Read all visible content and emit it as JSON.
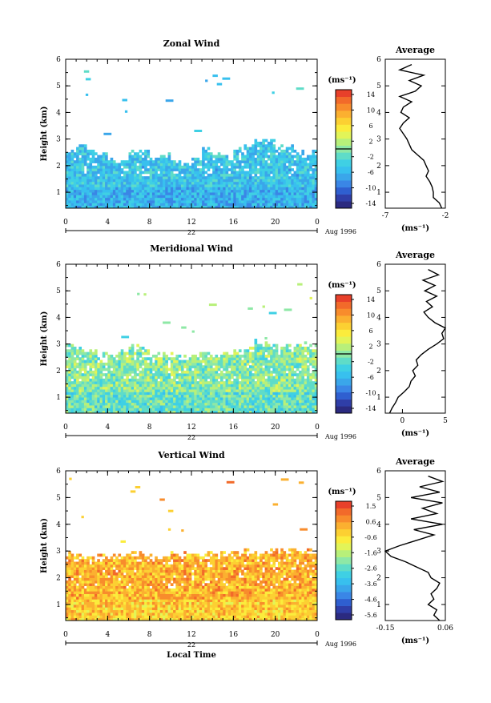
{
  "chart_data": [
    {
      "type": "heatmap",
      "title": "Zonal Wind",
      "ylabel": "Height (km)",
      "xlabel": "",
      "x_ticks": [
        "0",
        "4",
        "8",
        "12",
        "16",
        "20",
        "0"
      ],
      "x_range": [
        0,
        24
      ],
      "y_ticks": [
        "1",
        "2",
        "3",
        "4",
        "5",
        "6"
      ],
      "y_range": [
        0.4,
        6
      ],
      "date_day": "22",
      "date_label": "Aug 1996",
      "colorbar": {
        "unit": "(ms⁻¹)",
        "labels": [
          "14",
          "10",
          "6",
          "2",
          "-2",
          "-6",
          "-10",
          "-14"
        ],
        "range": [
          -16,
          16
        ],
        "zero_line": true
      },
      "data_top_km": [
        2.6,
        2.8,
        2.6,
        2.4,
        2.2,
        2.2,
        2.5,
        2.6,
        2.3,
        2.4,
        2.2,
        2.0,
        2.2,
        2.6,
        2.5,
        2.3,
        2.6,
        2.8,
        3.0,
        2.9,
        2.7,
        2.7,
        2.5,
        2.5
      ],
      "typical_value": -5,
      "profile": {
        "title": "Average",
        "xlabel": "(ms⁻¹)",
        "x_ticks": [
          "-7",
          "-2"
        ],
        "x_range": [
          -7,
          -2
        ],
        "heights": [
          0.4,
          0.6,
          0.8,
          1.0,
          1.2,
          1.4,
          1.6,
          1.8,
          2.0,
          2.2,
          2.4,
          2.6,
          2.8,
          3.0,
          3.2,
          3.4,
          3.6,
          3.8,
          4.0,
          4.2,
          4.4,
          4.6,
          4.8,
          5.0,
          5.2,
          5.4,
          5.6,
          5.8
        ],
        "values": [
          -2.3,
          -2.5,
          -3.0,
          -3.0,
          -3.1,
          -3.3,
          -3.6,
          -3.4,
          -3.6,
          -3.8,
          -4.3,
          -4.8,
          -5.0,
          -5.2,
          -5.5,
          -5.8,
          -5.5,
          -5.0,
          -5.7,
          -5.5,
          -4.8,
          -5.8,
          -4.5,
          -4.0,
          -5.0,
          -3.8,
          -5.8,
          -4.8
        ]
      }
    },
    {
      "type": "heatmap",
      "title": "Meridional Wind",
      "ylabel": "Height (km)",
      "xlabel": "",
      "x_ticks": [
        "0",
        "4",
        "8",
        "12",
        "16",
        "20",
        "0"
      ],
      "x_range": [
        0,
        24
      ],
      "y_ticks": [
        "1",
        "2",
        "3",
        "4",
        "5",
        "6"
      ],
      "y_range": [
        0.4,
        6
      ],
      "date_day": "22",
      "date_label": "Aug 1996",
      "colorbar": {
        "unit": "(ms⁻¹)",
        "labels": [
          "14",
          "10",
          "6",
          "2",
          "-2",
          "-6",
          "-10",
          "-14"
        ],
        "range": [
          -16,
          16
        ],
        "zero_line": true
      },
      "data_top_km": [
        2.9,
        2.8,
        2.8,
        2.6,
        2.6,
        2.7,
        2.9,
        2.8,
        2.6,
        2.6,
        2.6,
        2.5,
        2.6,
        2.7,
        2.6,
        2.6,
        2.7,
        2.8,
        3.1,
        3.0,
        2.9,
        2.9,
        3.0,
        2.9
      ],
      "typical_value": 0,
      "profile": {
        "title": "Average",
        "xlabel": "(ms⁻¹)",
        "x_ticks": [
          "0",
          "5"
        ],
        "x_range": [
          -2,
          5
        ],
        "heights": [
          0.4,
          0.6,
          0.8,
          1.0,
          1.2,
          1.4,
          1.6,
          1.8,
          2.0,
          2.2,
          2.4,
          2.6,
          2.8,
          3.0,
          3.2,
          3.4,
          3.6,
          3.8,
          4.0,
          4.2,
          4.4,
          4.6,
          4.8,
          5.0,
          5.2,
          5.4,
          5.6,
          5.8
        ],
        "values": [
          -1.5,
          -1.2,
          -0.8,
          -0.5,
          0.2,
          0.8,
          1.0,
          1.5,
          1.2,
          1.8,
          1.6,
          2.2,
          3.0,
          4.0,
          4.8,
          4.6,
          5.0,
          3.8,
          3.0,
          2.5,
          3.5,
          2.8,
          4.0,
          2.6,
          3.8,
          2.4,
          4.2,
          3.0
        ]
      }
    },
    {
      "type": "heatmap",
      "title": "Vertical Wind",
      "ylabel": "Height (km)",
      "xlabel": "Local Time",
      "x_ticks": [
        "0",
        "4",
        "8",
        "12",
        "16",
        "20",
        "0"
      ],
      "x_range": [
        0,
        24
      ],
      "y_ticks": [
        "1",
        "2",
        "3",
        "4",
        "5",
        "6"
      ],
      "y_range": [
        0.4,
        6
      ],
      "date_day": "22",
      "date_label": "Aug 1996",
      "colorbar": {
        "unit": "(ms⁻¹)",
        "labels": [
          "1.5",
          "0.6",
          "-0.6",
          "-1.6",
          "-2.6",
          "-3.6",
          "-4.6",
          "-5.6"
        ],
        "range": [
          -6.0,
          2.0
        ],
        "zero_line": false
      },
      "data_top_km": [
        2.9,
        2.8,
        2.7,
        2.8,
        2.8,
        2.8,
        2.9,
        2.9,
        2.8,
        2.8,
        2.9,
        2.9,
        2.8,
        2.9,
        2.9,
        2.9,
        2.9,
        3.0,
        2.9,
        3.0,
        3.0,
        3.0,
        3.0,
        3.0
      ],
      "typical_value": 0.3,
      "profile": {
        "title": "Average",
        "xlabel": "(ms⁻¹)",
        "x_ticks": [
          "-0.15",
          "0.06"
        ],
        "x_range": [
          -0.15,
          0.06
        ],
        "heights": [
          0.4,
          0.6,
          0.8,
          1.0,
          1.2,
          1.4,
          1.6,
          1.8,
          2.0,
          2.2,
          2.4,
          2.6,
          2.8,
          3.0,
          3.2,
          3.4,
          3.6,
          3.8,
          4.0,
          4.2,
          4.4,
          4.6,
          4.8,
          5.0,
          5.2,
          5.4,
          5.6,
          5.8
        ],
        "values": [
          0.04,
          0.02,
          0.03,
          0.0,
          0.02,
          0.01,
          0.03,
          0.04,
          0.01,
          0.0,
          -0.04,
          -0.08,
          -0.13,
          -0.15,
          -0.1,
          -0.04,
          0.02,
          -0.05,
          0.05,
          -0.06,
          0.03,
          -0.02,
          0.05,
          -0.06,
          0.04,
          -0.03,
          0.05,
          0.0
        ]
      }
    }
  ]
}
